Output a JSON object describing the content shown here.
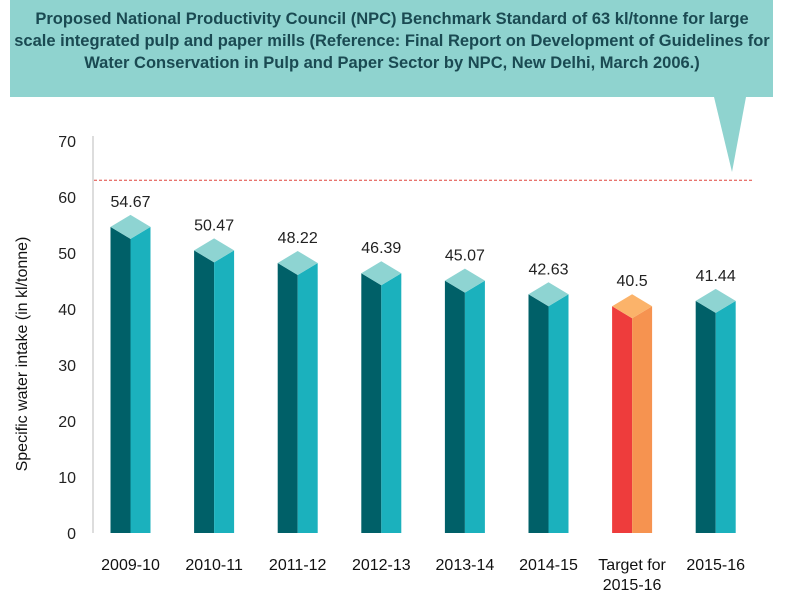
{
  "annotation": {
    "text": "Proposed National Productivity Council (NPC) Benchmark Standard of 63 kl/tonne for large scale integrated pulp and paper mills (Reference: Final Report on Development of Guidelines for Water Conservation in Pulp and Paper Sector by NPC, New Delhi, March 2006.)"
  },
  "colors": {
    "callout_bg": "#8fd3cf",
    "bar_front": "#006068",
    "bar_side": "#1bb1bd",
    "bar_top": "#8ed4d2",
    "target_front": "#ee3c3c",
    "target_side": "#f69350",
    "target_top": "#fbb36a",
    "benchmark_line": "#e0463f"
  },
  "chart_data": {
    "type": "bar",
    "title": "",
    "xlabel": "",
    "ylabel": "Specific water intake (in kl/tonne)",
    "ylim": [
      0,
      70
    ],
    "yticks": [
      0,
      10,
      20,
      30,
      40,
      50,
      60,
      70
    ],
    "categories": [
      "2009-10",
      "2010-11",
      "2011-12",
      "2012-13",
      "2013-14",
      "2014-15",
      "Target for 2015-16",
      "2015-16"
    ],
    "values": [
      54.67,
      50.47,
      48.22,
      46.39,
      45.07,
      42.63,
      40.5,
      41.44
    ],
    "value_labels": [
      "54.67",
      "50.47",
      "48.22",
      "46.39",
      "45.07",
      "42.63",
      "40.5",
      "41.44"
    ],
    "highlight_index": 6,
    "benchmark": {
      "value": 63
    },
    "grid": false,
    "legend": "none"
  }
}
